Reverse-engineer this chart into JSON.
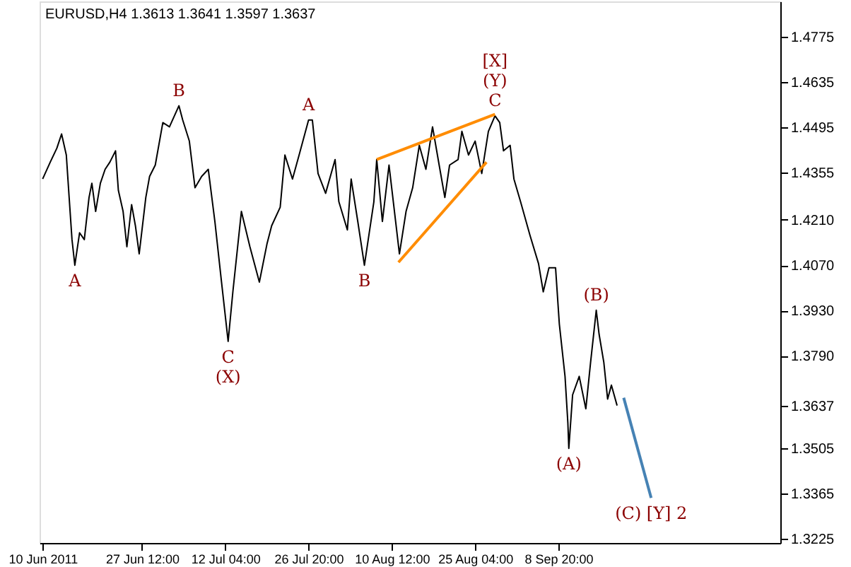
{
  "chart_data": {
    "type": "line",
    "title": "EURUSD,H4  1.3613 1.3641 1.3597 1.3637",
    "xlim": [
      "2011-06-09T11:00",
      "2011-10-17T22:00"
    ],
    "ylim": [
      1.3213,
      1.4884
    ],
    "xticks": [
      {
        "value": "2011-06-10T00:00",
        "label": "10 Jun 2011"
      },
      {
        "value": "2011-06-27T12:00",
        "label": "27 Jun 12:00"
      },
      {
        "value": "2011-07-12T04:00",
        "label": "12 Jul 04:00"
      },
      {
        "value": "2011-07-26T20:00",
        "label": "26 Jul 20:00"
      },
      {
        "value": "2011-08-10T12:00",
        "label": "10 Aug 12:00"
      },
      {
        "value": "2011-08-25T04:00",
        "label": "25 Aug 04:00"
      },
      {
        "value": "2011-09-08T20:00",
        "label": "8 Sep 20:00"
      }
    ],
    "yticks": [
      1.4775,
      1.4635,
      1.4495,
      1.4355,
      {
        "value": 1.421,
        "label": "1.4210"
      },
      {
        "value": 1.407,
        "label": "1.4070"
      },
      {
        "value": 1.393,
        "label": "1.3930"
      },
      {
        "value": 1.379,
        "label": "1.3790"
      },
      1.3637,
      1.3505,
      1.3365,
      1.3225
    ],
    "grid": false,
    "marker": "none",
    "line_style": "solid",
    "series": [
      {
        "color": "#000000",
        "x": [
          "2011-06-10T00:00",
          "2011-06-11T08:00",
          "2011-06-12T12:00",
          "2011-06-13T08:00",
          "2011-06-14T04:00",
          "2011-06-14T16:00",
          "2011-06-15T04:00",
          "2011-06-15T16:00",
          "2011-06-16T12:00",
          "2011-06-17T08:00",
          "2011-06-18T04:00",
          "2011-06-18T16:00",
          "2011-06-19T08:00",
          "2011-06-20T04:00",
          "2011-06-21T00:00",
          "2011-06-21T20:00",
          "2011-06-22T20:00",
          "2011-06-23T08:00",
          "2011-06-24T04:00",
          "2011-06-24T20:00",
          "2011-06-25T16:00",
          "2011-06-26T08:00",
          "2011-06-27T00:00",
          "2011-06-28T04:00",
          "2011-06-28T20:00",
          "2011-06-29T20:00",
          "2011-07-01T04:00",
          "2011-07-02T08:00",
          "2011-07-04T00:00",
          "2011-07-04T16:00",
          "2011-07-05T20:00",
          "2011-07-06T20:00",
          "2011-07-08T00:00",
          "2011-07-09T04:00",
          "2011-07-10T08:00",
          "2011-07-11T12:00",
          "2011-07-12T16:00",
          "2011-07-13T12:00",
          "2011-07-15T00:00",
          "2011-07-16T12:00",
          "2011-07-18T04:00",
          "2011-07-19T12:00",
          "2011-07-20T08:00",
          "2011-07-21T20:00",
          "2011-07-22T16:00",
          "2011-07-24T00:00",
          "2011-07-25T04:00",
          "2011-07-26T20:00",
          "2011-07-27T12:00",
          "2011-07-28T12:00",
          "2011-07-29T20:00",
          "2011-07-31T12:00",
          "2011-08-01T04:00",
          "2011-08-02T16:00",
          "2011-08-03T08:00",
          "2011-08-04T12:00",
          "2011-08-05T16:00",
          "2011-08-07T08:00",
          "2011-08-07T20:00",
          "2011-08-08T20:00",
          "2011-08-10T00:00",
          "2011-08-11T04:00",
          "2011-08-11T20:00",
          "2011-08-13T00:00",
          "2011-08-14T04:00",
          "2011-08-15T08:00",
          "2011-08-16T12:00",
          "2011-08-17T16:00",
          "2011-08-18T20:00",
          "2011-08-19T20:00",
          "2011-08-20T16:00",
          "2011-08-22T04:00",
          "2011-08-22T20:00",
          "2011-08-24T00:00",
          "2011-08-25T04:00",
          "2011-08-26T08:00",
          "2011-08-27T12:00",
          "2011-08-28T16:00",
          "2011-08-29T12:00",
          "2011-08-30T04:00",
          "2011-08-31T08:00",
          "2011-09-01T00:00",
          "2011-09-02T04:00",
          "2011-09-03T20:00",
          "2011-09-05T08:00",
          "2011-09-06T04:00",
          "2011-09-07T04:00",
          "2011-09-08T08:00",
          "2011-09-09T00:00",
          "2011-09-10T00:00",
          "2011-09-10T12:00",
          "2011-09-10T16:00",
          "2011-09-11T08:00",
          "2011-09-12T12:00",
          "2011-09-13T16:00",
          "2011-09-14T12:00",
          "2011-09-15T12:00",
          "2011-09-16T00:00",
          "2011-09-16T20:00",
          "2011-09-17T12:00",
          "2011-09-18T04:00",
          "2011-09-19T04:00"
        ],
        "values": [
          1.4336,
          1.4388,
          1.4431,
          1.4475,
          1.441,
          1.4279,
          1.4149,
          1.407,
          1.417,
          1.4149,
          1.4279,
          1.4323,
          1.4236,
          1.4323,
          1.4366,
          1.4388,
          1.4423,
          1.4301,
          1.4236,
          1.4127,
          1.4257,
          1.4192,
          1.4105,
          1.4279,
          1.4344,
          1.4379,
          1.451,
          1.4497,
          1.4562,
          1.4518,
          1.4453,
          1.4309,
          1.4344,
          1.4366,
          1.4205,
          1.4018,
          1.3835,
          1.3988,
          1.4236,
          1.4127,
          1.4018,
          1.4135,
          1.4192,
          1.4249,
          1.441,
          1.4336,
          1.441,
          1.4518,
          1.4518,
          1.4353,
          1.4292,
          1.4396,
          1.4266,
          1.4179,
          1.4336,
          1.4205,
          1.407,
          1.4266,
          1.4396,
          1.4205,
          1.4379,
          1.4205,
          1.4105,
          1.4236,
          1.4309,
          1.444,
          1.4366,
          1.4497,
          1.4379,
          1.4279,
          1.4379,
          1.4396,
          1.4483,
          1.441,
          1.4453,
          1.4353,
          1.4483,
          1.4531,
          1.451,
          1.4423,
          1.444,
          1.4336,
          1.4266,
          1.4162,
          1.4075,
          1.3988,
          1.4062,
          1.4062,
          1.3888,
          1.3727,
          1.3583,
          1.3505,
          1.367,
          1.3727,
          1.3627,
          1.377,
          1.3931,
          1.3857,
          1.377,
          1.3657,
          1.37,
          1.3637
        ]
      },
      {
        "type": "line",
        "color": "#ff8c00",
        "x": [
          "2011-08-07T20:00",
          "2011-08-28T16:00"
        ],
        "values": [
          1.4396,
          1.4536
        ]
      },
      {
        "type": "line",
        "color": "#ff8c00",
        "x": [
          "2011-08-11T16:00",
          "2011-08-27T04:00"
        ],
        "values": [
          1.4079,
          1.4388
        ]
      },
      {
        "type": "line",
        "color": "#4682b4",
        "x": [
          "2011-09-20T08:00",
          "2011-09-25T04:00"
        ],
        "values": [
          1.3661,
          1.3352
        ]
      }
    ],
    "annotations": [
      {
        "text": "A",
        "x": "2011-06-15T16:00",
        "y": 1.407
      },
      {
        "text": "B",
        "x": "2011-07-04T00:00",
        "y": 1.4562
      },
      {
        "text": "A",
        "x": "2011-07-26T20:00",
        "y": 1.4518
      },
      {
        "text": "C",
        "x": "2011-07-12T16:00",
        "y": 1.3835
      },
      {
        "text": "(X)",
        "x": "2011-07-12T16:00",
        "y": 1.3835
      },
      {
        "text": "B",
        "x": "2011-08-05T16:00",
        "y": 1.407
      },
      {
        "text": "C",
        "x": "2011-08-28T16:00",
        "y": 1.4531
      },
      {
        "text": "(Y)",
        "x": "2011-08-28T16:00",
        "y": 1.4531
      },
      {
        "text": "[X]",
        "x": "2011-08-28T16:00",
        "y": 1.4531
      },
      {
        "text": "(B)",
        "x": "2011-09-15T12:00",
        "y": 1.3931
      },
      {
        "text": "(A)",
        "x": "2011-09-10T16:00",
        "y": 1.3505
      },
      {
        "text": "(C) [Y] 2",
        "x": "2011-09-25T04:00",
        "y": 1.3352
      }
    ]
  }
}
